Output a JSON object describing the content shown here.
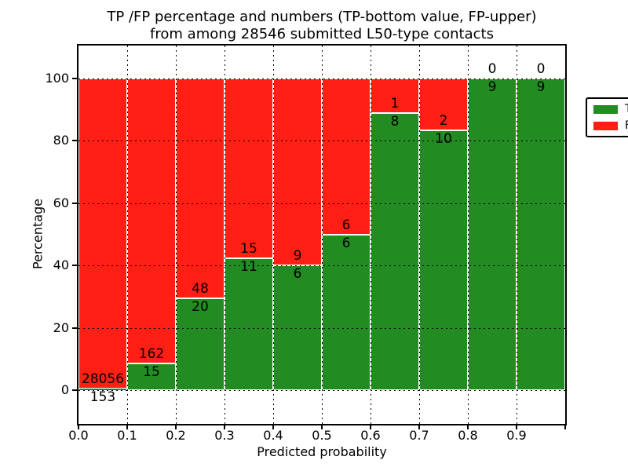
{
  "figure": {
    "title_line1": "TP /FP percentage and numbers (TP-bottom value, FP-upper)",
    "title_line2": "from among 28546 submitted L50-type contacts"
  },
  "chart_data": {
    "type": "bar",
    "stacked": true,
    "title": "TP /FP percentage and numbers (TP-bottom value, FP-upper) from among 28546 submitted L50-type contacts",
    "xlabel": "Predicted probability",
    "ylabel": "Percentage",
    "x_tick_labels": [
      "0.0",
      "0.1",
      "0.2",
      "0.3",
      "0.4",
      "0.5",
      "0.6",
      "0.7",
      "0.8",
      "0.9"
    ],
    "y_tick_values": [
      0,
      20,
      40,
      60,
      80,
      100
    ],
    "xlim": [
      0.0,
      1.0
    ],
    "ylim": [
      -11,
      111
    ],
    "grid": "dotted",
    "bar_unit": "percent of bin total, stacked to 100",
    "legend": {
      "position": "upper right",
      "entries": [
        {
          "label": "TP",
          "color": "#228b22"
        },
        {
          "label": "FP",
          "color": "#ff1f14"
        }
      ]
    },
    "colors": {
      "tp": "#228b22",
      "fp": "#ff1f14",
      "grid": "#000000",
      "background": "#ffffff"
    },
    "bars": [
      {
        "bin": "0.0-0.1",
        "tp": 153,
        "fp": 28056
      },
      {
        "bin": "0.1-0.2",
        "tp": 15,
        "fp": 162
      },
      {
        "bin": "0.2-0.3",
        "tp": 20,
        "fp": 48
      },
      {
        "bin": "0.3-0.4",
        "tp": 11,
        "fp": 15
      },
      {
        "bin": "0.4-0.5",
        "tp": 6,
        "fp": 9
      },
      {
        "bin": "0.5-0.6",
        "tp": 6,
        "fp": 6
      },
      {
        "bin": "0.6-0.7",
        "tp": 8,
        "fp": 1
      },
      {
        "bin": "0.7-0.8",
        "tp": 10,
        "fp": 2
      },
      {
        "bin": "0.8-0.9",
        "tp": 9,
        "fp": 0
      },
      {
        "bin": "0.9-1.0",
        "tp": 9,
        "fp": 0
      }
    ]
  }
}
